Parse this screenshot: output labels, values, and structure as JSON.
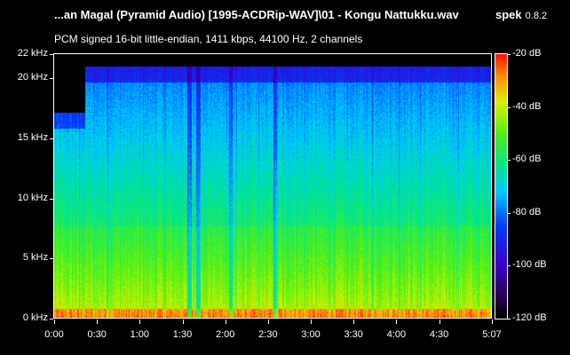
{
  "header": {
    "title": "...an Magal (Pyramid Audio) [1995-ACDRip-WAV]\\01 - Kongu Nattukku.wav",
    "subtitle": "PCM signed 16-bit little-endian, 1411 kbps, 44100 Hz, 2 channels",
    "app_name": "spek",
    "app_version": "0.8.2"
  },
  "freq_axis": {
    "labels": [
      "22 kHz",
      "20 kHz",
      "15 kHz",
      "10 kHz",
      "5 kHz",
      "0 kHz"
    ],
    "values_khz": [
      22,
      20,
      15,
      10,
      5,
      0
    ]
  },
  "time_axis": {
    "labels": [
      "0:00",
      "0:30",
      "1:00",
      "1:30",
      "2:00",
      "2:30",
      "3:00",
      "3:30",
      "4:00",
      "4:30",
      "5:07"
    ],
    "values_sec": [
      0,
      30,
      60,
      90,
      120,
      150,
      180,
      210,
      240,
      270,
      307
    ]
  },
  "db_scale": {
    "labels": [
      "-20 dB",
      "-40 dB",
      "-60 dB",
      "-80 dB",
      "-100 dB",
      "-120 dB"
    ],
    "values_db": [
      -20,
      -40,
      -60,
      -80,
      -100,
      -120
    ]
  },
  "colors": {
    "background": "#000000",
    "text": "#ffffff"
  }
}
